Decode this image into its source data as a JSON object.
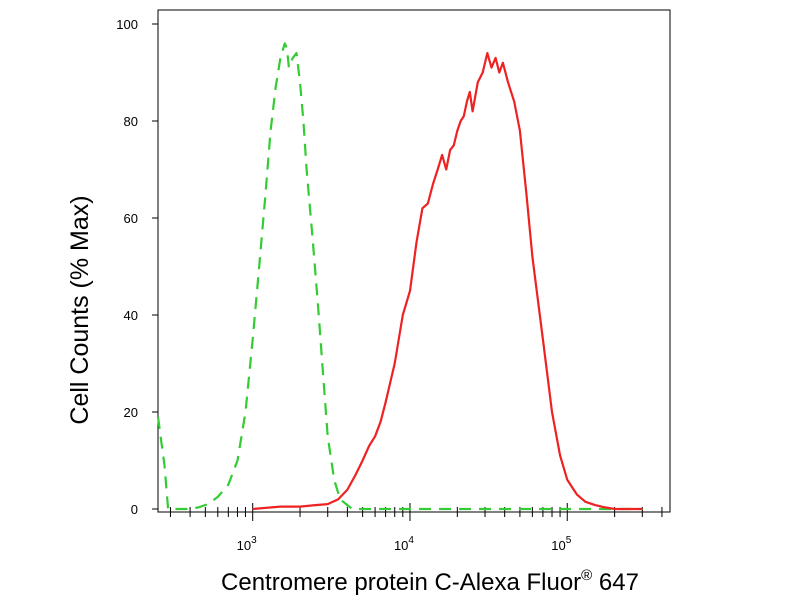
{
  "chart_data": {
    "type": "line",
    "xlabel": "Centromere protein C-Alexa Fluor",
    "xlabel_superscript": "®",
    "xlabel_suffix": " 647",
    "ylabel": "Cell Counts (% Max)",
    "x_scale": "log",
    "xlim": [
      250,
      450000
    ],
    "ylim": [
      0,
      100
    ],
    "y_ticks": [
      0,
      20,
      40,
      60,
      80,
      100
    ],
    "y_tick_labels": [
      "0",
      "20",
      "40",
      "60",
      "80",
      "100"
    ],
    "x_ticks": [
      {
        "value": 1000,
        "base": "10",
        "exp": "3"
      },
      {
        "value": 10000,
        "base": "10",
        "exp": "4"
      },
      {
        "value": 100000,
        "base": "10",
        "exp": "5"
      }
    ],
    "grid": false,
    "series": [
      {
        "color": "#33cc33",
        "style": "dashed",
        "x": [
          250,
          275,
          290,
          320,
          380,
          450,
          520,
          600,
          700,
          800,
          900,
          1000,
          1100,
          1200,
          1300,
          1400,
          1500,
          1600,
          1650,
          1700,
          1800,
          1900,
          2000,
          2100,
          2200,
          2400,
          2600,
          2800,
          3000,
          3300,
          3600,
          4000,
          4300,
          4600,
          5000,
          6000,
          10000,
          30000,
          100000,
          300000
        ],
        "y": [
          19,
          9,
          0,
          0,
          0,
          0.3,
          1,
          2.5,
          5,
          10,
          20,
          35,
          50,
          64,
          78,
          87,
          93,
          96,
          95,
          91,
          93,
          94,
          88,
          80,
          70,
          56,
          42,
          28,
          15,
          6,
          2,
          0.8,
          0,
          0,
          0,
          0,
          0,
          0,
          0,
          0
        ]
      },
      {
        "color": "#ee2222",
        "style": "solid",
        "x": [
          1000,
          1500,
          2000,
          2500,
          3000,
          3500,
          4000,
          4500,
          5000,
          5500,
          6000,
          6500,
          7000,
          8000,
          9000,
          10000,
          11000,
          12000,
          13000,
          14000,
          15000,
          16000,
          17000,
          18000,
          19000,
          20000,
          21000,
          22000,
          23000,
          24000,
          25000,
          27000,
          29000,
          31000,
          33000,
          35000,
          37000,
          39000,
          42000,
          46000,
          50000,
          55000,
          60000,
          70000,
          80000,
          90000,
          100000,
          115000,
          130000,
          150000,
          170000,
          200000,
          250000,
          300000
        ],
        "y": [
          0,
          0.5,
          0.5,
          0.8,
          1,
          2,
          4,
          7,
          10,
          13,
          15,
          18,
          22,
          30,
          40,
          45,
          55,
          62,
          63,
          67,
          70,
          73,
          70,
          74,
          75,
          78,
          80,
          81,
          84,
          86,
          82,
          88,
          90,
          94,
          91,
          93,
          90,
          92,
          88,
          84,
          78,
          65,
          52,
          35,
          20,
          11,
          6,
          3,
          1.5,
          0.8,
          0.4,
          0,
          0,
          0
        ]
      }
    ]
  }
}
